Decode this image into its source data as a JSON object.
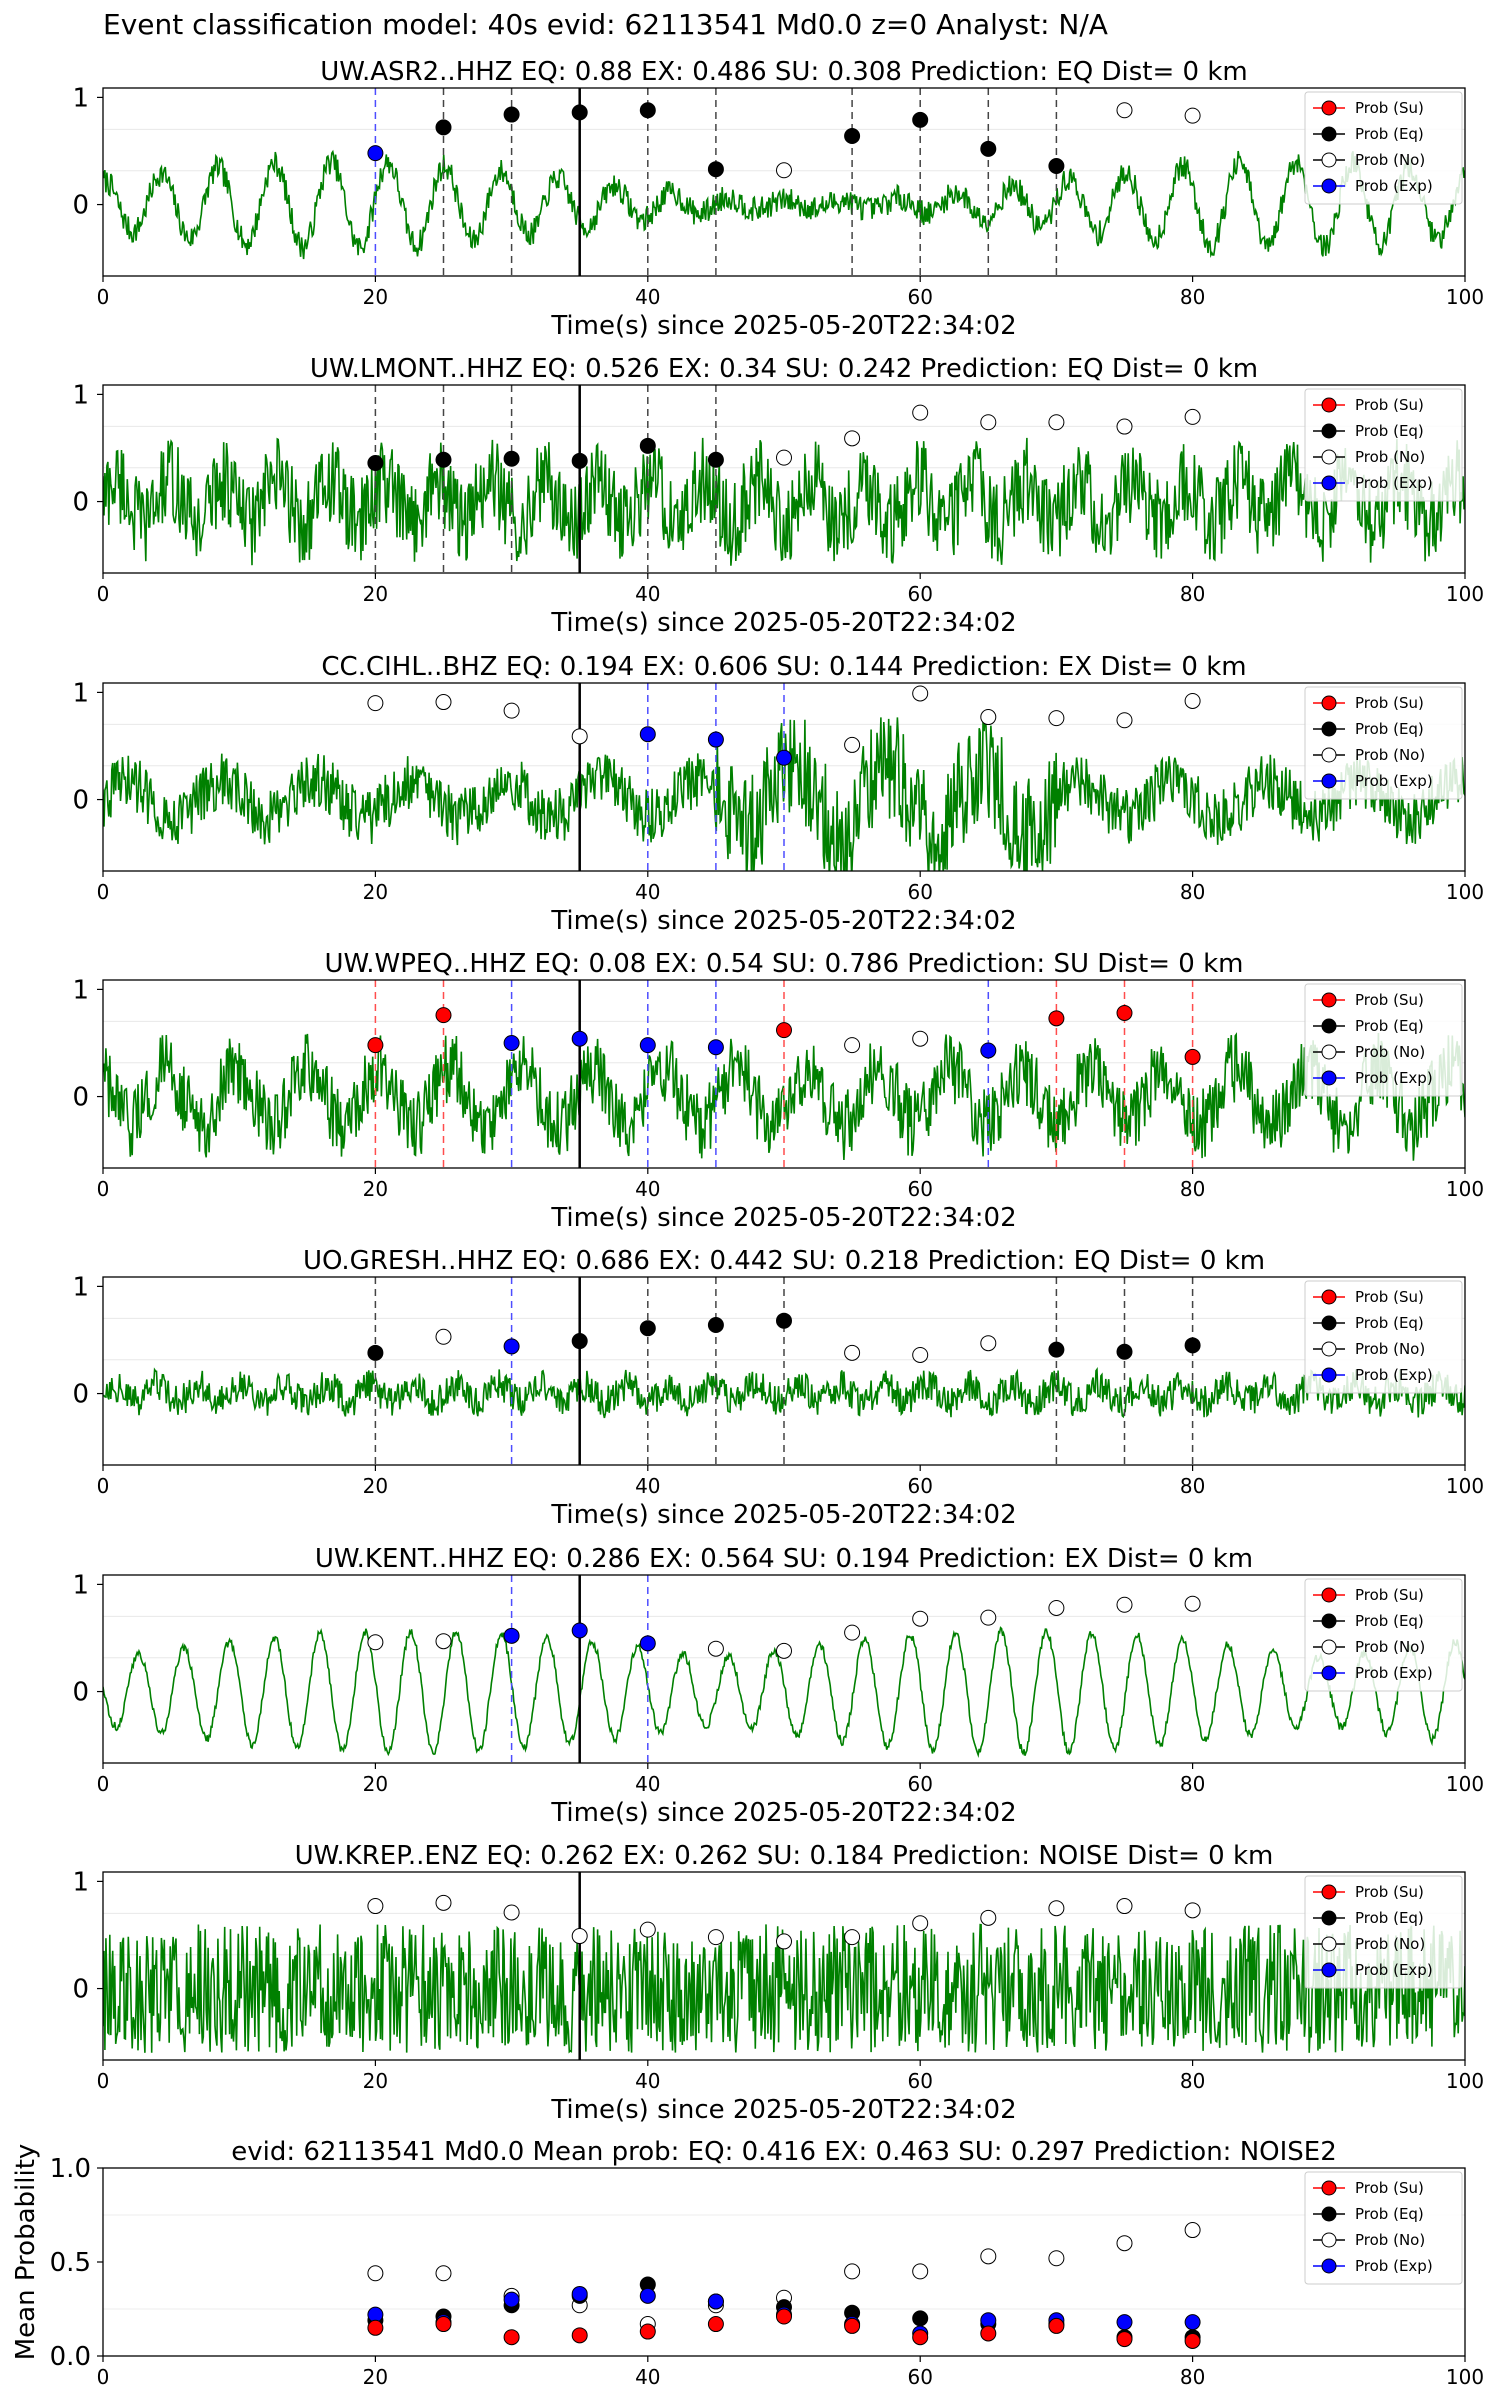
{
  "suptitle": "Event classification model: 40s evid: 62113541 Md0.0 z=0 Analyst: N/A",
  "legend_labels": [
    "Prob (Su)",
    "Prob (Eq)",
    "Prob (No)",
    "Prob (Exp)"
  ],
  "colors": {
    "su": "#ff0000",
    "eq": "#000000",
    "no": "#ffffff",
    "exp": "#0000ff",
    "trace": "#008000"
  },
  "chart_data": [
    {
      "type": "line",
      "title": "UW.ASR2..HHZ   EQ: 0.88  EX: 0.486  SU: 0.308   Prediction: EQ    Dist= 0 km",
      "xlabel": "Time(s) since 2025-05-20T22:34:02",
      "xlim": [
        0,
        100
      ],
      "x_ticks": [
        "0",
        "20",
        "40",
        "60",
        "80",
        "100"
      ],
      "y_ticks": [
        "0",
        "1"
      ],
      "trace_style": "low",
      "reference_line_x": 35,
      "points": [
        {
          "x": 20,
          "y": 0.48,
          "cls": "exp"
        },
        {
          "x": 25,
          "y": 0.72,
          "cls": "eq"
        },
        {
          "x": 30,
          "y": 0.84,
          "cls": "eq"
        },
        {
          "x": 35,
          "y": 0.86,
          "cls": "eq"
        },
        {
          "x": 40,
          "y": 0.88,
          "cls": "eq"
        },
        {
          "x": 45,
          "y": 0.33,
          "cls": "eq"
        },
        {
          "x": 50,
          "y": 0.32,
          "cls": "no"
        },
        {
          "x": 55,
          "y": 0.64,
          "cls": "eq"
        },
        {
          "x": 60,
          "y": 0.79,
          "cls": "eq"
        },
        {
          "x": 65,
          "y": 0.52,
          "cls": "eq"
        },
        {
          "x": 70,
          "y": 0.36,
          "cls": "eq"
        },
        {
          "x": 75,
          "y": 0.88,
          "cls": "no"
        },
        {
          "x": 80,
          "y": 0.83,
          "cls": "no"
        }
      ]
    },
    {
      "type": "line",
      "title": "UW.LMONT..HHZ   EQ: 0.526  EX: 0.34  SU: 0.242   Prediction: EQ    Dist= 0 km",
      "xlabel": "Time(s) since 2025-05-20T22:34:02",
      "xlim": [
        0,
        100
      ],
      "x_ticks": [
        "0",
        "20",
        "40",
        "60",
        "80",
        "100"
      ],
      "y_ticks": [
        "0",
        "1"
      ],
      "trace_style": "high",
      "reference_line_x": 35,
      "points": [
        {
          "x": 20,
          "y": 0.36,
          "cls": "eq"
        },
        {
          "x": 25,
          "y": 0.39,
          "cls": "eq"
        },
        {
          "x": 30,
          "y": 0.4,
          "cls": "eq"
        },
        {
          "x": 35,
          "y": 0.38,
          "cls": "eq"
        },
        {
          "x": 40,
          "y": 0.52,
          "cls": "eq"
        },
        {
          "x": 45,
          "y": 0.39,
          "cls": "eq"
        },
        {
          "x": 50,
          "y": 0.41,
          "cls": "no"
        },
        {
          "x": 55,
          "y": 0.59,
          "cls": "no"
        },
        {
          "x": 60,
          "y": 0.83,
          "cls": "no"
        },
        {
          "x": 65,
          "y": 0.74,
          "cls": "no"
        },
        {
          "x": 70,
          "y": 0.74,
          "cls": "no"
        },
        {
          "x": 75,
          "y": 0.7,
          "cls": "no"
        },
        {
          "x": 80,
          "y": 0.79,
          "cls": "no"
        }
      ]
    },
    {
      "type": "line",
      "title": "CC.CIHL..BHZ   EQ: 0.194  EX: 0.606  SU: 0.144   Prediction: EX    Dist= 0 km",
      "xlabel": "Time(s) since 2025-05-20T22:34:02",
      "xlim": [
        0,
        100
      ],
      "x_ticks": [
        "0",
        "20",
        "40",
        "60",
        "80",
        "100"
      ],
      "y_ticks": [
        "0",
        "1"
      ],
      "trace_style": "mixed",
      "reference_line_x": 35,
      "points": [
        {
          "x": 20,
          "y": 0.9,
          "cls": "no"
        },
        {
          "x": 25,
          "y": 0.91,
          "cls": "no"
        },
        {
          "x": 30,
          "y": 0.83,
          "cls": "no"
        },
        {
          "x": 35,
          "y": 0.59,
          "cls": "no"
        },
        {
          "x": 40,
          "y": 0.61,
          "cls": "exp"
        },
        {
          "x": 45,
          "y": 0.56,
          "cls": "exp"
        },
        {
          "x": 50,
          "y": 0.39,
          "cls": "exp"
        },
        {
          "x": 55,
          "y": 0.51,
          "cls": "no"
        },
        {
          "x": 60,
          "y": 0.99,
          "cls": "no"
        },
        {
          "x": 65,
          "y": 0.77,
          "cls": "no"
        },
        {
          "x": 70,
          "y": 0.76,
          "cls": "no"
        },
        {
          "x": 75,
          "y": 0.74,
          "cls": "no"
        },
        {
          "x": 80,
          "y": 0.92,
          "cls": "no"
        }
      ]
    },
    {
      "type": "line",
      "title": "UW.WPEQ..HHZ   EQ: 0.08  EX: 0.54  SU: 0.786   Prediction: SU    Dist= 0 km",
      "xlabel": "Time(s) since 2025-05-20T22:34:02",
      "xlim": [
        0,
        100
      ],
      "x_ticks": [
        "0",
        "20",
        "40",
        "60",
        "80",
        "100"
      ],
      "y_ticks": [
        "0",
        "1"
      ],
      "trace_style": "mid",
      "reference_line_x": 35,
      "points": [
        {
          "x": 20,
          "y": 0.48,
          "cls": "su"
        },
        {
          "x": 25,
          "y": 0.76,
          "cls": "su"
        },
        {
          "x": 30,
          "y": 0.5,
          "cls": "exp"
        },
        {
          "x": 35,
          "y": 0.54,
          "cls": "exp"
        },
        {
          "x": 40,
          "y": 0.48,
          "cls": "exp"
        },
        {
          "x": 45,
          "y": 0.46,
          "cls": "exp"
        },
        {
          "x": 50,
          "y": 0.62,
          "cls": "su"
        },
        {
          "x": 55,
          "y": 0.48,
          "cls": "no"
        },
        {
          "x": 60,
          "y": 0.54,
          "cls": "no"
        },
        {
          "x": 65,
          "y": 0.43,
          "cls": "exp"
        },
        {
          "x": 70,
          "y": 0.73,
          "cls": "su"
        },
        {
          "x": 75,
          "y": 0.78,
          "cls": "su"
        },
        {
          "x": 80,
          "y": 0.37,
          "cls": "su"
        }
      ]
    },
    {
      "type": "line",
      "title": "UO.GRESH..HHZ   EQ: 0.686  EX: 0.442  SU: 0.218   Prediction: EQ    Dist= 0 km",
      "xlabel": "Time(s) since 2025-05-20T22:34:02",
      "xlim": [
        0,
        100
      ],
      "x_ticks": [
        "0",
        "20",
        "40",
        "60",
        "80",
        "100"
      ],
      "y_ticks": [
        "0",
        "1"
      ],
      "trace_style": "quiet",
      "reference_line_x": 35,
      "points": [
        {
          "x": 20,
          "y": 0.38,
          "cls": "eq"
        },
        {
          "x": 25,
          "y": 0.53,
          "cls": "no"
        },
        {
          "x": 30,
          "y": 0.44,
          "cls": "exp"
        },
        {
          "x": 35,
          "y": 0.49,
          "cls": "eq"
        },
        {
          "x": 40,
          "y": 0.61,
          "cls": "eq"
        },
        {
          "x": 45,
          "y": 0.64,
          "cls": "eq"
        },
        {
          "x": 50,
          "y": 0.68,
          "cls": "eq"
        },
        {
          "x": 55,
          "y": 0.38,
          "cls": "no"
        },
        {
          "x": 60,
          "y": 0.36,
          "cls": "no"
        },
        {
          "x": 65,
          "y": 0.47,
          "cls": "no"
        },
        {
          "x": 70,
          "y": 0.41,
          "cls": "eq"
        },
        {
          "x": 75,
          "y": 0.39,
          "cls": "eq"
        },
        {
          "x": 80,
          "y": 0.45,
          "cls": "eq"
        }
      ]
    },
    {
      "type": "line",
      "title": "UW.KENT..HHZ   EQ: 0.286  EX: 0.564  SU: 0.194   Prediction: EX    Dist= 0 km",
      "xlabel": "Time(s) since 2025-05-20T22:34:02",
      "xlim": [
        0,
        100
      ],
      "x_ticks": [
        "0",
        "20",
        "40",
        "60",
        "80",
        "100"
      ],
      "y_ticks": [
        "0",
        "1"
      ],
      "trace_style": "wave",
      "reference_line_x": 35,
      "points": [
        {
          "x": 20,
          "y": 0.46,
          "cls": "no"
        },
        {
          "x": 25,
          "y": 0.47,
          "cls": "no"
        },
        {
          "x": 30,
          "y": 0.52,
          "cls": "exp"
        },
        {
          "x": 35,
          "y": 0.57,
          "cls": "exp"
        },
        {
          "x": 40,
          "y": 0.45,
          "cls": "exp"
        },
        {
          "x": 45,
          "y": 0.4,
          "cls": "no"
        },
        {
          "x": 50,
          "y": 0.38,
          "cls": "no"
        },
        {
          "x": 55,
          "y": 0.55,
          "cls": "no"
        },
        {
          "x": 60,
          "y": 0.68,
          "cls": "no"
        },
        {
          "x": 65,
          "y": 0.69,
          "cls": "no"
        },
        {
          "x": 70,
          "y": 0.78,
          "cls": "no"
        },
        {
          "x": 75,
          "y": 0.81,
          "cls": "no"
        },
        {
          "x": 80,
          "y": 0.82,
          "cls": "no"
        }
      ]
    },
    {
      "type": "line",
      "title": "UW.KREP..ENZ   EQ: 0.262  EX: 0.262  SU: 0.184   Prediction: NOISE    Dist= 0 km",
      "xlabel": "Time(s) since 2025-05-20T22:34:02",
      "xlim": [
        0,
        100
      ],
      "x_ticks": [
        "0",
        "20",
        "40",
        "60",
        "80",
        "100"
      ],
      "y_ticks": [
        "0",
        "1"
      ],
      "trace_style": "noise",
      "reference_line_x": 35,
      "points": [
        {
          "x": 20,
          "y": 0.77,
          "cls": "no"
        },
        {
          "x": 25,
          "y": 0.8,
          "cls": "no"
        },
        {
          "x": 30,
          "y": 0.71,
          "cls": "no"
        },
        {
          "x": 35,
          "y": 0.49,
          "cls": "no"
        },
        {
          "x": 40,
          "y": 0.55,
          "cls": "no"
        },
        {
          "x": 45,
          "y": 0.48,
          "cls": "no"
        },
        {
          "x": 50,
          "y": 0.44,
          "cls": "no"
        },
        {
          "x": 55,
          "y": 0.48,
          "cls": "no"
        },
        {
          "x": 60,
          "y": 0.61,
          "cls": "no"
        },
        {
          "x": 65,
          "y": 0.66,
          "cls": "no"
        },
        {
          "x": 70,
          "y": 0.75,
          "cls": "no"
        },
        {
          "x": 75,
          "y": 0.77,
          "cls": "no"
        },
        {
          "x": 80,
          "y": 0.73,
          "cls": "no"
        }
      ]
    },
    {
      "type": "scatter",
      "title": "evid: 62113541  Md0.0   Mean prob:   EQ: 0.416  EX: 0.463  SU: 0.297   Prediction: NOISE2",
      "ylabel": "Mean Probability",
      "xlim": [
        0,
        100
      ],
      "ylim": [
        0,
        1
      ],
      "x_ticks": [
        "0",
        "20",
        "40",
        "60",
        "80",
        "100"
      ],
      "y_ticks": [
        "0.0",
        "0.5",
        "1.0"
      ],
      "x": [
        20,
        25,
        30,
        35,
        40,
        45,
        50,
        55,
        60,
        65,
        70,
        75,
        80
      ],
      "series": [
        {
          "name": "Prob (No)",
          "key": "no",
          "values": [
            0.44,
            0.44,
            0.32,
            0.27,
            0.17,
            0.27,
            0.31,
            0.45,
            0.45,
            0.53,
            0.52,
            0.6,
            0.67
          ]
        },
        {
          "name": "Prob (Eq)",
          "key": "eq",
          "values": [
            0.19,
            0.21,
            0.27,
            0.32,
            0.38,
            0.29,
            0.26,
            0.23,
            0.2,
            0.17,
            0.17,
            0.1,
            0.1
          ]
        },
        {
          "name": "Prob (Exp)",
          "key": "exp",
          "values": [
            0.22,
            0.18,
            0.3,
            0.33,
            0.32,
            0.29,
            0.22,
            0.17,
            0.12,
            0.19,
            0.19,
            0.18,
            0.18
          ]
        },
        {
          "name": "Prob (Su)",
          "key": "su",
          "values": [
            0.15,
            0.17,
            0.1,
            0.11,
            0.13,
            0.17,
            0.21,
            0.16,
            0.1,
            0.12,
            0.16,
            0.09,
            0.08
          ]
        }
      ]
    }
  ]
}
